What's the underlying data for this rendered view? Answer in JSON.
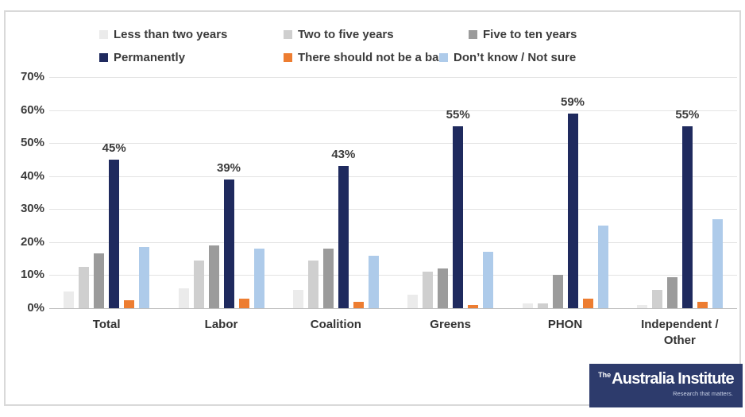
{
  "chart_data": {
    "type": "bar",
    "title": "",
    "categories": [
      "Total",
      "Labor",
      "Coalition",
      "Greens",
      "PHON",
      "Independent / Other"
    ],
    "series": [
      {
        "name": "Less than two years",
        "color": "#EBEBEB",
        "values": [
          5,
          6,
          5.5,
          4,
          1.5,
          1
        ]
      },
      {
        "name": "Two to five years",
        "color": "#CFCFCF",
        "values": [
          12.5,
          14.5,
          14.5,
          11,
          1.5,
          5.5
        ]
      },
      {
        "name": "Five to ten years",
        "color": "#9B9B9B",
        "values": [
          16.5,
          19,
          18,
          12,
          10,
          9.5
        ]
      },
      {
        "name": "Permanently",
        "color": "#1F2A5E",
        "values": [
          45,
          39,
          43,
          55,
          59,
          55
        ],
        "data_labels": [
          "45%",
          "39%",
          "43%",
          "55%",
          "59%",
          "55%"
        ]
      },
      {
        "name": "There should not be a ban",
        "color": "#ED7D31",
        "values": [
          2.5,
          3,
          2,
          1,
          3,
          2
        ]
      },
      {
        "name": "Don’t know / Not sure",
        "color": "#AECBEA",
        "values": [
          18.5,
          18,
          16,
          17,
          25,
          27
        ]
      }
    ],
    "y_ticks": [
      "0%",
      "10%",
      "20%",
      "30%",
      "40%",
      "50%",
      "60%",
      "70%"
    ],
    "ylim": [
      0,
      70
    ],
    "grid": true,
    "legend_position": "top"
  },
  "branding": {
    "logo_the": "The",
    "logo_name": "Australia Institute",
    "logo_tagline": "Research that matters."
  }
}
